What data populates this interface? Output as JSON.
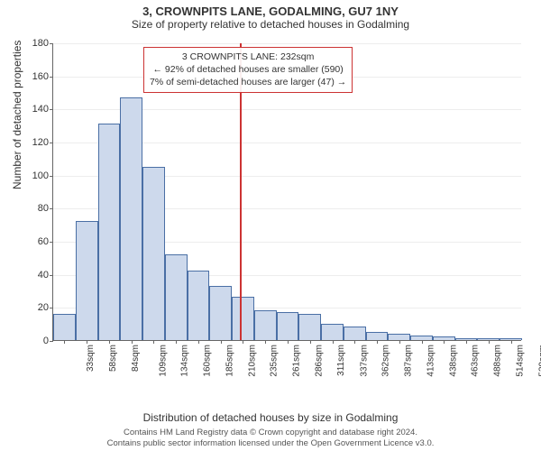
{
  "title": "3, CROWNPITS LANE, GODALMING, GU7 1NY",
  "subtitle": "Size of property relative to detached houses in Godalming",
  "title_fontsize": 13,
  "subtitle_fontsize": 12,
  "chart": {
    "type": "histogram",
    "ylabel": "Number of detached properties",
    "xlabel": "Distribution of detached houses by size in Godalming",
    "label_fontsize": 12,
    "ylim": [
      0,
      180
    ],
    "ytick_step": 20,
    "xticks": [
      33,
      58,
      84,
      109,
      134,
      160,
      185,
      210,
      235,
      261,
      286,
      311,
      337,
      362,
      387,
      413,
      438,
      463,
      488,
      514,
      539
    ],
    "xtick_unit": "sqm",
    "bar_color": "#cdd9ec",
    "bar_border_color": "#4a6fa5",
    "grid_color": "#cccccc",
    "background_color": "#ffffff",
    "bars": [
      16,
      72,
      131,
      147,
      105,
      52,
      42,
      33,
      26,
      18,
      17,
      16,
      10,
      8,
      5,
      4,
      3,
      2,
      1,
      1,
      1
    ],
    "marker_x": 232,
    "marker_color": "#cc3333"
  },
  "annotation": {
    "line1": "3 CROWNPITS LANE: 232sqm",
    "line2": "← 92% of detached houses are smaller (590)",
    "line3": "7% of semi-detached houses are larger (47) →",
    "border_color": "#cc3333",
    "fontsize": 10.5
  },
  "footer": {
    "line1": "Contains HM Land Registry data © Crown copyright and database right 2024.",
    "line2": "Contains public sector information licensed under the Open Government Licence v3.0."
  }
}
